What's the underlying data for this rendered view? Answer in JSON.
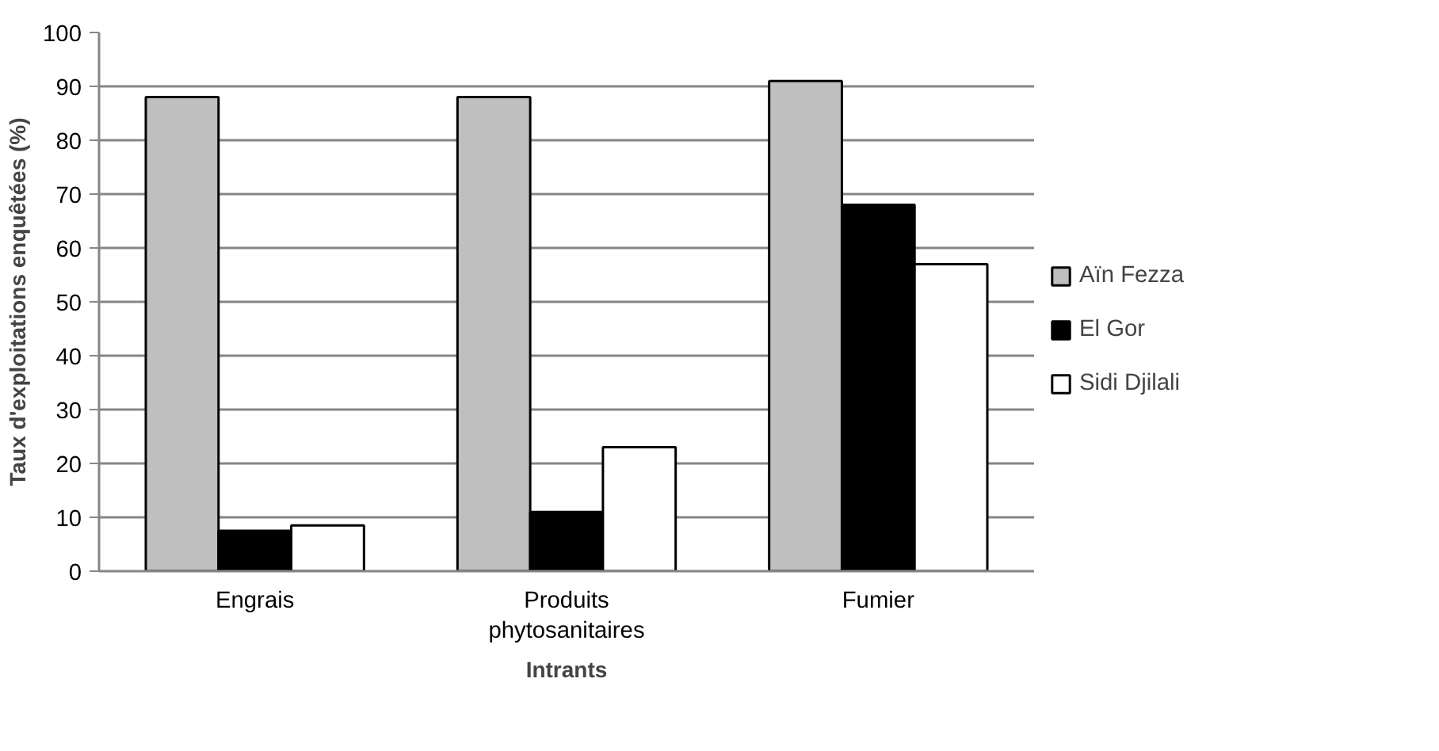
{
  "chart_data": {
    "type": "bar",
    "xlabel": "Intrants",
    "ylabel": "Taux d'exploitations enquêtées (%)",
    "categories": [
      "Engrais",
      "Produits phytosanitaires",
      "Fumier"
    ],
    "series": [
      {
        "name": "Aïn Fezza",
        "color": "#bfbfbf",
        "values": [
          88,
          88,
          91
        ]
      },
      {
        "name": "El Gor",
        "color": "#000000",
        "values": [
          7.5,
          11,
          68
        ]
      },
      {
        "name": "Sidi Djilali",
        "color": "#ffffff",
        "values": [
          8.5,
          23,
          57
        ]
      }
    ],
    "ylim": [
      0,
      100
    ],
    "yticks": [
      0,
      10,
      20,
      30,
      40,
      50,
      60,
      70,
      80,
      90,
      100
    ],
    "grid": "y",
    "legend": "right"
  }
}
